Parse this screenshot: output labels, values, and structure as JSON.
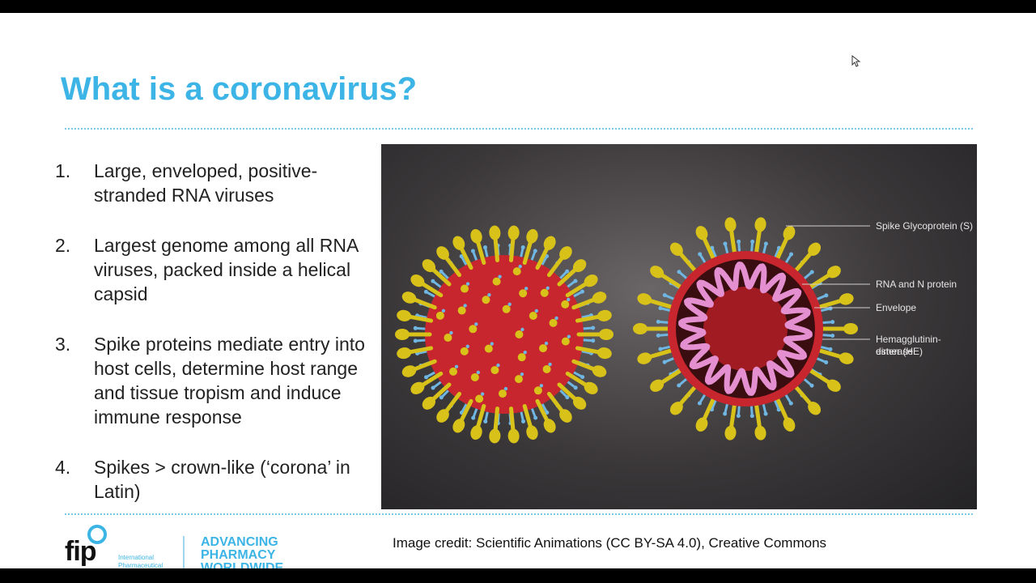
{
  "slide": {
    "title": "What is a coronavirus?",
    "points": [
      {
        "num": "1.",
        "text": "Large, enveloped, positive-stranded RNA viruses"
      },
      {
        "num": "2.",
        "text": "Largest genome among all RNA viruses, packed inside a helical capsid"
      },
      {
        "num": "3.",
        "text": "Spike proteins mediate entry into host cells, determine host range and tissue tropism and induce immune response"
      },
      {
        "num": "4.",
        "text": "Spikes > crown-like (‘corona’ in Latin)"
      }
    ],
    "figure_labels": {
      "spike": "Spike Glycoprotein (S)",
      "rna": "RNA and N protein",
      "envelope": "Envelope",
      "he_line1": "Hemagglutinin-esterase",
      "he_line2": "dimer (HE)"
    },
    "credit": "Image credit: Scientific Animations (CC BY-SA 4.0), Creative Commons"
  },
  "logo": {
    "mark": "fip",
    "sub_line1": "International",
    "sub_line2": "Pharmaceutical",
    "tagline_line1": "ADVANCING",
    "tagline_line2": "PHARMACY",
    "tagline_line3": "WORLDWIDE"
  },
  "colors": {
    "title": "#3cb4e5",
    "spike": "#d8c21a",
    "virion": "#c8262e",
    "he": "#6fb6e2",
    "rna": "#e48fd0"
  }
}
